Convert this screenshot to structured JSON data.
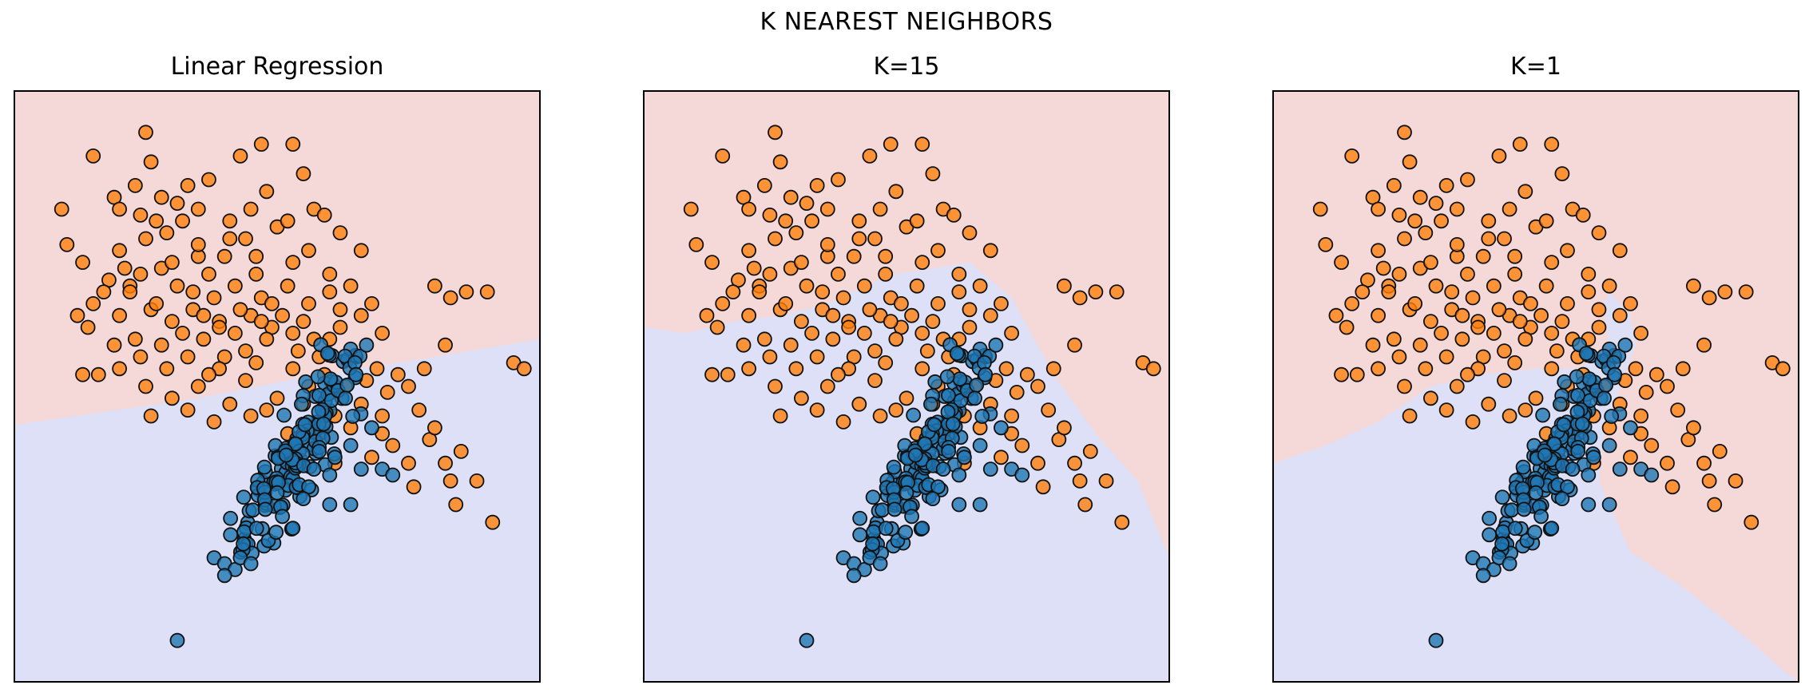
{
  "figure": {
    "suptitle": "K NEAREST NEIGHBORS"
  },
  "colors": {
    "region_class_0": "#dde0f6",
    "region_class_1": "#f5d9d9",
    "points_class_0": "#1f77b4",
    "points_class_1": "#ff7f0e",
    "point_edge": "#111111",
    "axes_frame": "#000000"
  },
  "chart_data": [
    {
      "type": "scatter",
      "title": "Linear Regression",
      "xlabel": "",
      "ylabel": "",
      "xlim": [
        0,
        1
      ],
      "ylim": [
        0,
        1
      ],
      "ticks": false,
      "grid": false,
      "series": [
        {
          "class": 0
        },
        {
          "class": 1
        }
      ],
      "decision_boundary": {
        "left_region": [
          [
            0.0,
            0.565
          ],
          [
            0.35,
            0.52
          ],
          [
            0.55,
            0.485
          ],
          [
            0.8,
            0.45
          ],
          [
            1.0,
            0.42
          ]
        ]
      }
    },
    {
      "type": "scatter",
      "title": "K=15",
      "xlabel": "",
      "ylabel": "",
      "xlim": [
        0,
        1
      ],
      "ylim": [
        0,
        1
      ],
      "ticks": false,
      "grid": false,
      "series": [
        {
          "class": 0
        },
        {
          "class": 1
        }
      ],
      "decision_boundary": {
        "left_region": [
          [
            0.0,
            0.4
          ],
          [
            0.08,
            0.41
          ],
          [
            0.17,
            0.39
          ],
          [
            0.26,
            0.38
          ],
          [
            0.35,
            0.36
          ],
          [
            0.42,
            0.33
          ],
          [
            0.48,
            0.31
          ],
          [
            0.55,
            0.3
          ],
          [
            0.62,
            0.29
          ],
          [
            0.7,
            0.35
          ],
          [
            0.78,
            0.48
          ],
          [
            0.86,
            0.58
          ],
          [
            0.94,
            0.66
          ],
          [
            1.0,
            0.79
          ]
        ]
      }
    },
    {
      "type": "scatter",
      "title": "K=1",
      "xlabel": "",
      "ylabel": "",
      "xlim": [
        0,
        1
      ],
      "ylim": [
        0,
        1
      ],
      "ticks": false,
      "grid": false,
      "series": [
        {
          "class": 0
        },
        {
          "class": 1
        }
      ],
      "decision_boundary": {
        "left_region": [
          [
            0.0,
            0.63
          ],
          [
            0.1,
            0.6
          ],
          [
            0.2,
            0.56
          ],
          [
            0.3,
            0.5
          ],
          [
            0.4,
            0.48
          ],
          [
            0.5,
            0.47
          ],
          [
            0.58,
            0.47
          ],
          [
            0.62,
            0.45
          ],
          [
            0.64,
            0.44
          ],
          [
            0.63,
            0.36
          ],
          [
            0.64,
            0.34
          ],
          [
            0.68,
            0.38
          ],
          [
            0.69,
            0.43
          ],
          [
            0.66,
            0.5
          ],
          [
            0.63,
            0.58
          ],
          [
            0.62,
            0.66
          ],
          [
            0.68,
            0.78
          ],
          [
            0.78,
            0.84
          ],
          [
            0.88,
            0.91
          ],
          [
            0.97,
            0.98
          ],
          [
            1.0,
            1.0
          ]
        ]
      }
    }
  ]
}
